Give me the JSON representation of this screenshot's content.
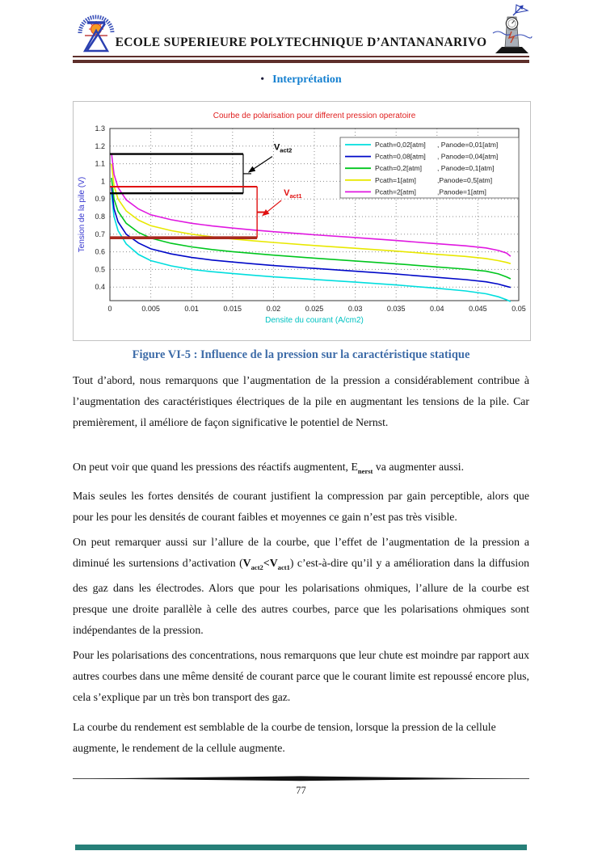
{
  "header": {
    "title": "ECOLE SUPERIEURE POLYTECHNIQUE D’ANTANANARIVO",
    "rule_color": "#5e2f2b"
  },
  "section": {
    "bullet": "•",
    "label": "Interprétation"
  },
  "figure": {
    "caption": "Figure VI-5 : Influence de la pression sur la caractéristique statique"
  },
  "chart_data": {
    "type": "line",
    "title": "Courbe de polarisation pour different pression operatoire",
    "title_color": "#e02020",
    "xlabel": "Densite du courant (A/cm2)",
    "xlabel_color": "#00c2c2",
    "ylabel": "Tension de la pile (V)",
    "ylabel_color": "#3535cf",
    "xlim": [
      0,
      0.05
    ],
    "ylim": [
      0.32,
      1.3
    ],
    "xticks": [
      0,
      0.005,
      0.01,
      0.015,
      0.02,
      0.025,
      0.03,
      0.035,
      0.04,
      0.045,
      0.05
    ],
    "yticks": [
      0.4,
      0.5,
      0.6,
      0.7,
      0.8,
      0.9,
      1,
      1.1,
      1.2,
      1.3
    ],
    "grid": true,
    "legend_position": "upper right",
    "x": [
      0.0002,
      0.0005,
      0.001,
      0.002,
      0.0035,
      0.005,
      0.0075,
      0.01,
      0.0125,
      0.015,
      0.0175,
      0.02,
      0.025,
      0.03,
      0.035,
      0.04,
      0.0435,
      0.046,
      0.0475,
      0.0485,
      0.049
    ],
    "series": [
      {
        "name": "Pcath=0,02[atm] , Panode=0,01[atm]",
        "legend_left": "Pcath=0,02[atm]",
        "legend_right": ", Panode=0,01[atm]",
        "color": "#00dede",
        "values": [
          0.93,
          0.8,
          0.72,
          0.645,
          0.585,
          0.55,
          0.52,
          0.5,
          0.487,
          0.477,
          0.467,
          0.458,
          0.443,
          0.428,
          0.412,
          0.393,
          0.378,
          0.362,
          0.345,
          0.328,
          0.318
        ]
      },
      {
        "name": "Pcath=0,08[atm] , Panode=0,04[atm]",
        "legend_left": "Pcath=0,08[atm]",
        "legend_right": ", Panode=0,04[atm]",
        "color": "#0008c8",
        "values": [
          0.97,
          0.845,
          0.77,
          0.7,
          0.65,
          0.617,
          0.588,
          0.568,
          0.553,
          0.542,
          0.532,
          0.522,
          0.506,
          0.49,
          0.474,
          0.455,
          0.442,
          0.43,
          0.417,
          0.404,
          0.398
        ]
      },
      {
        "name": "Pcath=0,2[atm] , Panode=0,1[atm]",
        "legend_left": "Pcath=0,2[atm]",
        "legend_right": ", Panode=0,1[atm]",
        "color": "#00c61e",
        "values": [
          1.02,
          0.9,
          0.83,
          0.762,
          0.71,
          0.678,
          0.648,
          0.628,
          0.613,
          0.601,
          0.591,
          0.581,
          0.564,
          0.548,
          0.532,
          0.514,
          0.502,
          0.49,
          0.475,
          0.458,
          0.447
        ]
      },
      {
        "name": "Pcath=1[atm] ,Panode=0,5[atm]",
        "legend_left": "Pcath=1[atm]",
        "legend_right": ",Panode=0,5[atm]",
        "color": "#e8e800",
        "values": [
          1.1,
          0.975,
          0.9,
          0.832,
          0.78,
          0.748,
          0.72,
          0.7,
          0.685,
          0.673,
          0.663,
          0.653,
          0.636,
          0.62,
          0.604,
          0.586,
          0.574,
          0.562,
          0.55,
          0.54,
          0.533
        ]
      },
      {
        "name": "Pcath=2[atm] ,Panode=1[atm]",
        "legend_left": "Pcath=2[atm]",
        "legend_right": ",Panode=1[atm]",
        "color": "#e018e0",
        "values": [
          1.16,
          1.04,
          0.965,
          0.895,
          0.843,
          0.81,
          0.782,
          0.762,
          0.747,
          0.735,
          0.724,
          0.714,
          0.697,
          0.681,
          0.664,
          0.646,
          0.634,
          0.622,
          0.608,
          0.593,
          0.575
        ]
      }
    ],
    "annotations": {
      "vact2": {
        "base": "V",
        "sub": "act2",
        "color": "#000000",
        "y_top": 1.155,
        "y_bottom": 0.932,
        "x_end": 0.0163
      },
      "vact1": {
        "base": "V",
        "sub": "act1",
        "color": "#e01010",
        "bottom_line_color": "#a8281e",
        "y_top": 0.97,
        "y_bottom": 0.68,
        "x_end": 0.018
      }
    }
  },
  "body": {
    "p1": "Tout d’abord, nous remarquons que l’augmentation de la pression a considérablement contribue à l’augmentation des caractéristiques électriques de la pile en augmentant les tensions de la pile. Car premièrement, il améliore de façon significative le potentiel de Nernst.",
    "p2": [
      "On peut voir que quand les pressions des réactifs augmentent, E",
      "nerst",
      " va augmenter aussi."
    ],
    "p3": "Mais seules les fortes densités de courant justifient la compression par gain perceptible, alors que pour les pour les densités de courant faibles et moyennes ce gain n’est pas très visible.",
    "p4": [
      "On peut remarquer aussi sur l’allure de la courbe, que l’effet de l’augmentation de la pression a diminué les surtensions d’activation (",
      "V",
      "act2",
      "<",
      "V",
      "act1",
      ") c’est-à-dire qu’il y a amélioration dans la diffusion des gaz dans les électrodes. Alors que pour les polarisations ohmiques, l’allure de la courbe est presque une droite parallèle à celle des autres courbes, parce que les polarisations ohmiques sont indépendantes de la pression."
    ],
    "p5": "Pour les polarisations des concentrations, nous remarquons que leur chute est moindre par rapport aux autres courbes dans une même densité de courant parce que le courant limite est repoussé encore plus, cela s’explique par un très bon transport des gaz.",
    "p6": "La courbe du rendement est semblable de la courbe de tension, lorsque la pression de la cellule augmente, le rendement de la cellule augmente."
  },
  "footer": {
    "page_number": "77"
  }
}
